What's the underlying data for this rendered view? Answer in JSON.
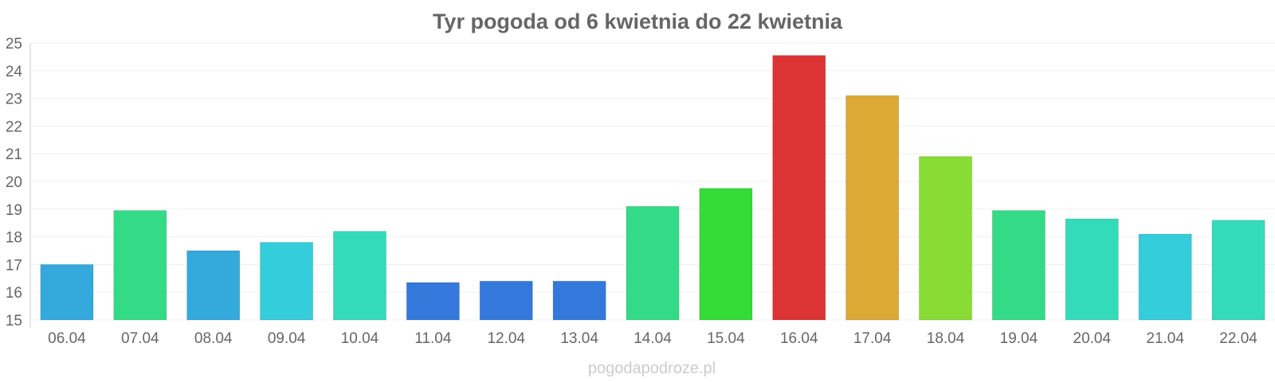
{
  "chart_data": {
    "type": "bar",
    "title": "Tyr pogoda od 6 kwietnia do 22 kwietnia",
    "categories": [
      "06.04",
      "07.04",
      "08.04",
      "09.04",
      "10.04",
      "11.04",
      "12.04",
      "13.04",
      "14.04",
      "15.04",
      "16.04",
      "17.04",
      "18.04",
      "19.04",
      "20.04",
      "21.04",
      "22.04"
    ],
    "values": [
      17.0,
      18.95,
      17.5,
      17.8,
      18.2,
      16.35,
      16.4,
      16.4,
      19.1,
      19.75,
      24.55,
      23.1,
      20.9,
      18.95,
      18.65,
      18.1,
      18.6
    ],
    "colors": [
      "#34a9dc",
      "#33db86",
      "#34a9dc",
      "#34cddb",
      "#33dbba",
      "#3478dc",
      "#3478dc",
      "#3478dc",
      "#33db86",
      "#33dc36",
      "#dc3434",
      "#dca934",
      "#89dc34",
      "#33db86",
      "#33dbba",
      "#34cddb",
      "#33dbba"
    ],
    "yticks": [
      15,
      16,
      17,
      18,
      19,
      20,
      21,
      22,
      23,
      24,
      25
    ],
    "ylim": [
      15,
      25
    ],
    "xlabel": "",
    "ylabel": "",
    "grid": true,
    "legend": "none"
  },
  "footer": {
    "source": "pogodapodroze.pl"
  }
}
